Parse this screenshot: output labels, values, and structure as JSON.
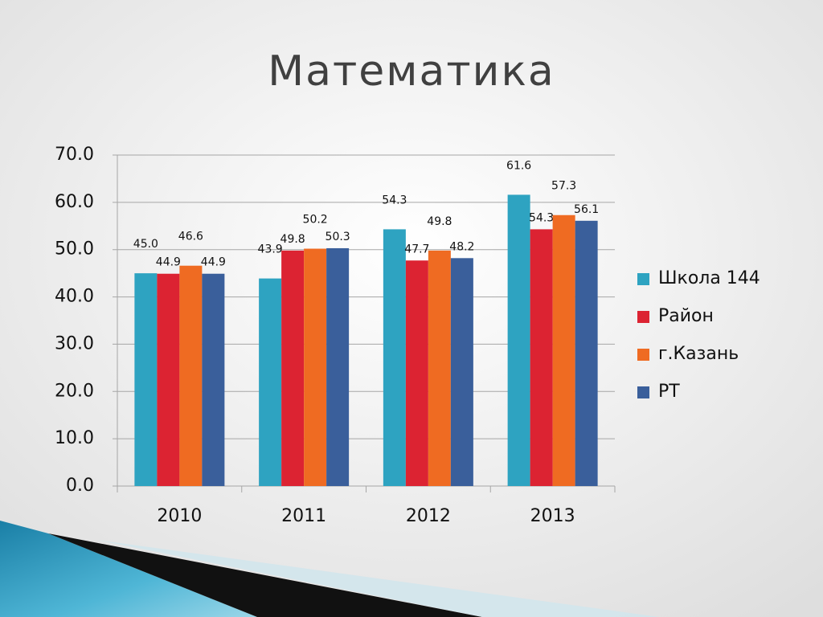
{
  "chart_data": {
    "type": "bar",
    "title": "Математика",
    "categories": [
      "2010",
      "2011",
      "2012",
      "2013"
    ],
    "series": [
      {
        "name": "Школа 144",
        "color": "#2ea3c1",
        "values": [
          45.0,
          43.9,
          54.3,
          61.6
        ],
        "value_labels": [
          "45.0",
          "43.9",
          "54.3",
          "61.6"
        ]
      },
      {
        "name": "Район",
        "color": "#dc2332",
        "values": [
          44.9,
          49.8,
          47.7,
          54.3
        ],
        "value_labels": [
          "44.9",
          "49.8",
          "47.7",
          "54.3"
        ]
      },
      {
        "name": "г.Казань",
        "color": "#ef6b22",
        "values": [
          46.6,
          50.2,
          49.8,
          57.3
        ],
        "value_labels": [
          "46.6",
          "50.2",
          "49.8",
          "57.3"
        ]
      },
      {
        "name": "РТ",
        "color": "#3a5f9b",
        "values": [
          44.9,
          50.3,
          48.2,
          56.1
        ],
        "value_labels": [
          "44.9",
          "50.3",
          "48.2",
          "56.1"
        ]
      }
    ],
    "ylim": [
      0,
      70
    ],
    "yticks": [
      {
        "value": 0,
        "label": "0.0"
      },
      {
        "value": 10,
        "label": "10.0"
      },
      {
        "value": 20,
        "label": "20.0"
      },
      {
        "value": 30,
        "label": "30.0"
      },
      {
        "value": 40,
        "label": "40.0"
      },
      {
        "value": 50,
        "label": "50.0"
      },
      {
        "value": 60,
        "label": "60.0"
      },
      {
        "value": 70,
        "label": "70.0"
      }
    ],
    "grid": true,
    "legend": "right"
  }
}
